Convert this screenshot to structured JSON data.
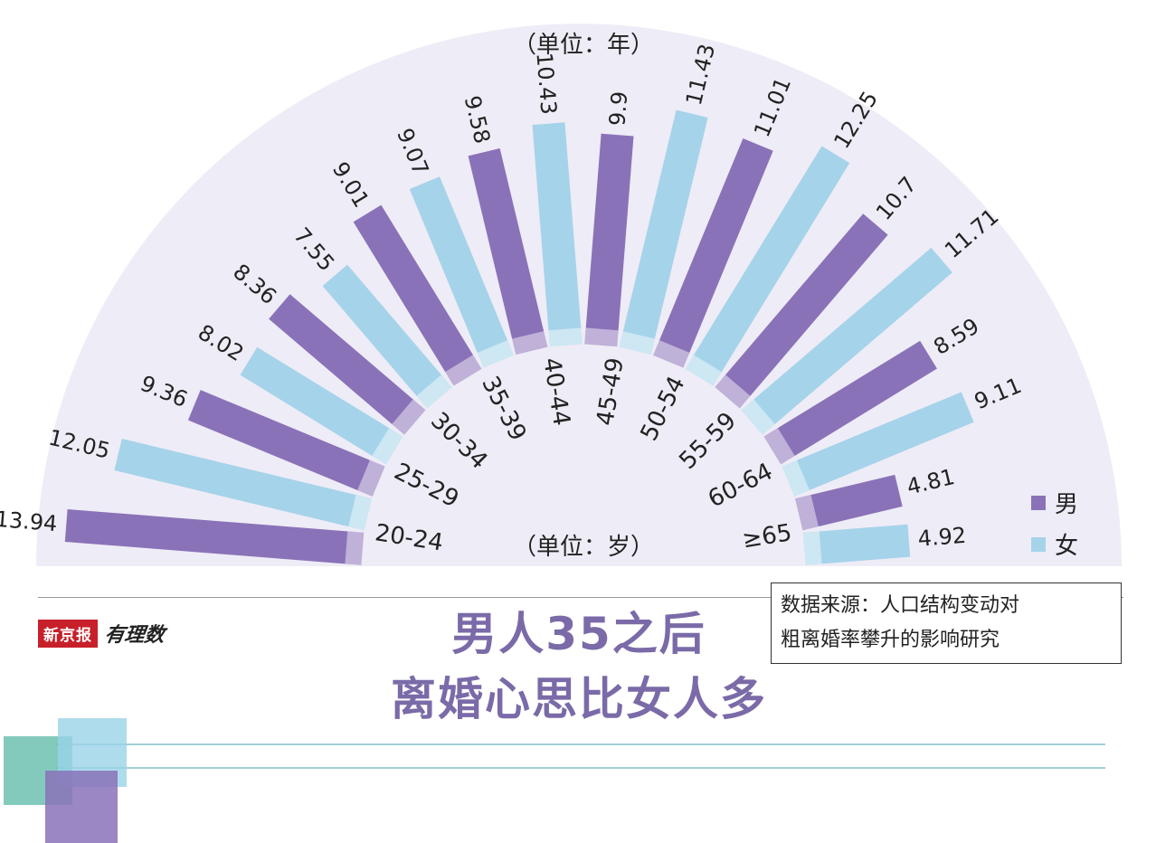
{
  "header": {
    "unit_year": "（单位：年）",
    "unit_age": "（单位：岁）"
  },
  "legend": {
    "male": "男",
    "female": "女"
  },
  "brand": {
    "logo": "新京报",
    "column": "有理数"
  },
  "headline": {
    "line1": "男人35之后",
    "line2": "离婚心思比女人多"
  },
  "source": {
    "line1": "数据来源：人口结构变动对",
    "line2": "粗离婚率攀升的影响研究"
  },
  "colors": {
    "male": "#8a72b8",
    "female": "#a5d3ea",
    "fan_bg": "#eeecf6",
    "headline": "#7b6aa8"
  },
  "chart_data": {
    "type": "bar",
    "layout": "radial-fan",
    "categories": [
      "20-24",
      "25-29",
      "30-34",
      "35-39",
      "40-44",
      "45-49",
      "50-54",
      "55-59",
      "60-64",
      "≥65"
    ],
    "series": [
      {
        "name": "男",
        "values": [
          13.94,
          9.36,
          8.36,
          9.01,
          9.58,
          9.9,
          11.01,
          10.7,
          8.59,
          4.81
        ]
      },
      {
        "name": "女",
        "values": [
          12.05,
          8.02,
          7.55,
          9.07,
          10.43,
          11.43,
          12.25,
          11.71,
          9.11,
          4.92
        ]
      }
    ],
    "value_labels": {
      "男": [
        "13.94",
        "9.36",
        "8.36",
        "9.01",
        "9.58",
        "9.9",
        "11.01",
        "10.7",
        "8.59",
        "4.81"
      ],
      "女": [
        "12.05",
        "8.02",
        "7.55",
        "9.07",
        "10.43",
        "11.43",
        "12.25",
        "11.71",
        "9.11",
        "4.92"
      ]
    },
    "ylabel": "（单位：年）",
    "xlabel": "（单位：岁）"
  }
}
